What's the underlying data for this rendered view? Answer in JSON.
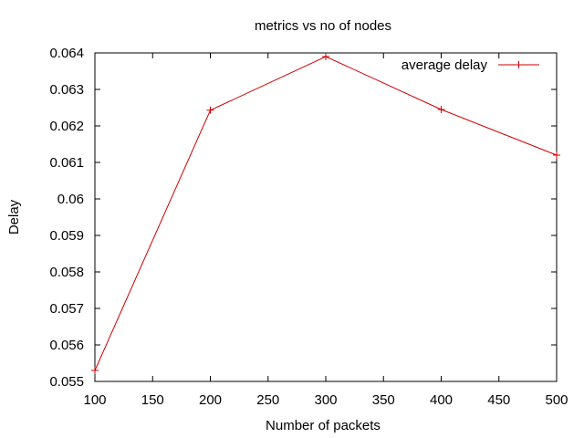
{
  "chart_data": {
    "type": "line",
    "title": "metrics vs no of nodes",
    "xlabel": "Number of packets",
    "ylabel": "Delay",
    "xlim": [
      100,
      500
    ],
    "ylim": [
      0.055,
      0.064
    ],
    "x_ticks": [
      "100",
      "150",
      "200",
      "250",
      "300",
      "350",
      "400",
      "450",
      "500"
    ],
    "y_ticks": [
      "0.055",
      "0.056",
      "0.057",
      "0.058",
      "0.059",
      "0.06",
      "0.061",
      "0.062",
      "0.063",
      "0.064"
    ],
    "grid": false,
    "legend_position": "top-right",
    "series": [
      {
        "name": "average delay",
        "color": "#cc0000",
        "marker": "plus",
        "x": [
          100,
          200,
          300,
          400,
          500
        ],
        "y": [
          0.0553,
          0.06243,
          0.0639,
          0.06245,
          0.0612
        ]
      }
    ]
  }
}
